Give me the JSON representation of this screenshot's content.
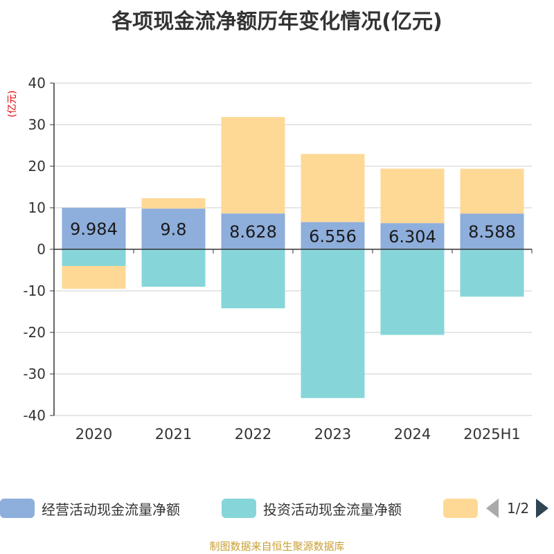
{
  "title": "各项现金流净额历年变化情况(亿元)",
  "unit_label": "(亿元)",
  "source": "制图数据来自恒生聚源数据库",
  "colors": {
    "operating": "#8eaedc",
    "investing": "#86d6d9",
    "third": "#fed996",
    "axis": "#333333",
    "grid": "#cccccc"
  },
  "legend": {
    "items": [
      {
        "label": "经营活动现金流量净额",
        "color": "#8eaedc"
      },
      {
        "label": "投资活动现金流量净额",
        "color": "#86d6d9"
      },
      {
        "label": "",
        "color": "#fed996"
      }
    ],
    "page_text": "1/2"
  },
  "chart_data": {
    "type": "bar",
    "stacked": true,
    "categories": [
      "2020",
      "2021",
      "2022",
      "2023",
      "2024",
      "2025H1"
    ],
    "ylim": [
      -40,
      40
    ],
    "yticks": [
      40,
      30,
      20,
      10,
      0,
      -10,
      -20,
      -30,
      -40
    ],
    "grid": true,
    "legend_position": "bottom",
    "series": [
      {
        "name": "经营活动现金流量净额",
        "values": [
          9.984,
          9.8,
          8.628,
          6.556,
          6.304,
          8.588
        ],
        "show_labels": true
      },
      {
        "name": "投资活动现金流量净额",
        "values": [
          -4.0,
          -9.0,
          -14.2,
          -35.8,
          -20.6,
          -11.4
        ],
        "show_labels": false
      },
      {
        "values": [
          -5.5,
          2.5,
          23.2,
          16.4,
          13.1,
          10.8
        ],
        "show_labels": false
      }
    ],
    "data_labels": [
      "9.984",
      "9.8",
      "8.628",
      "6.556",
      "6.304",
      "8.588"
    ]
  }
}
